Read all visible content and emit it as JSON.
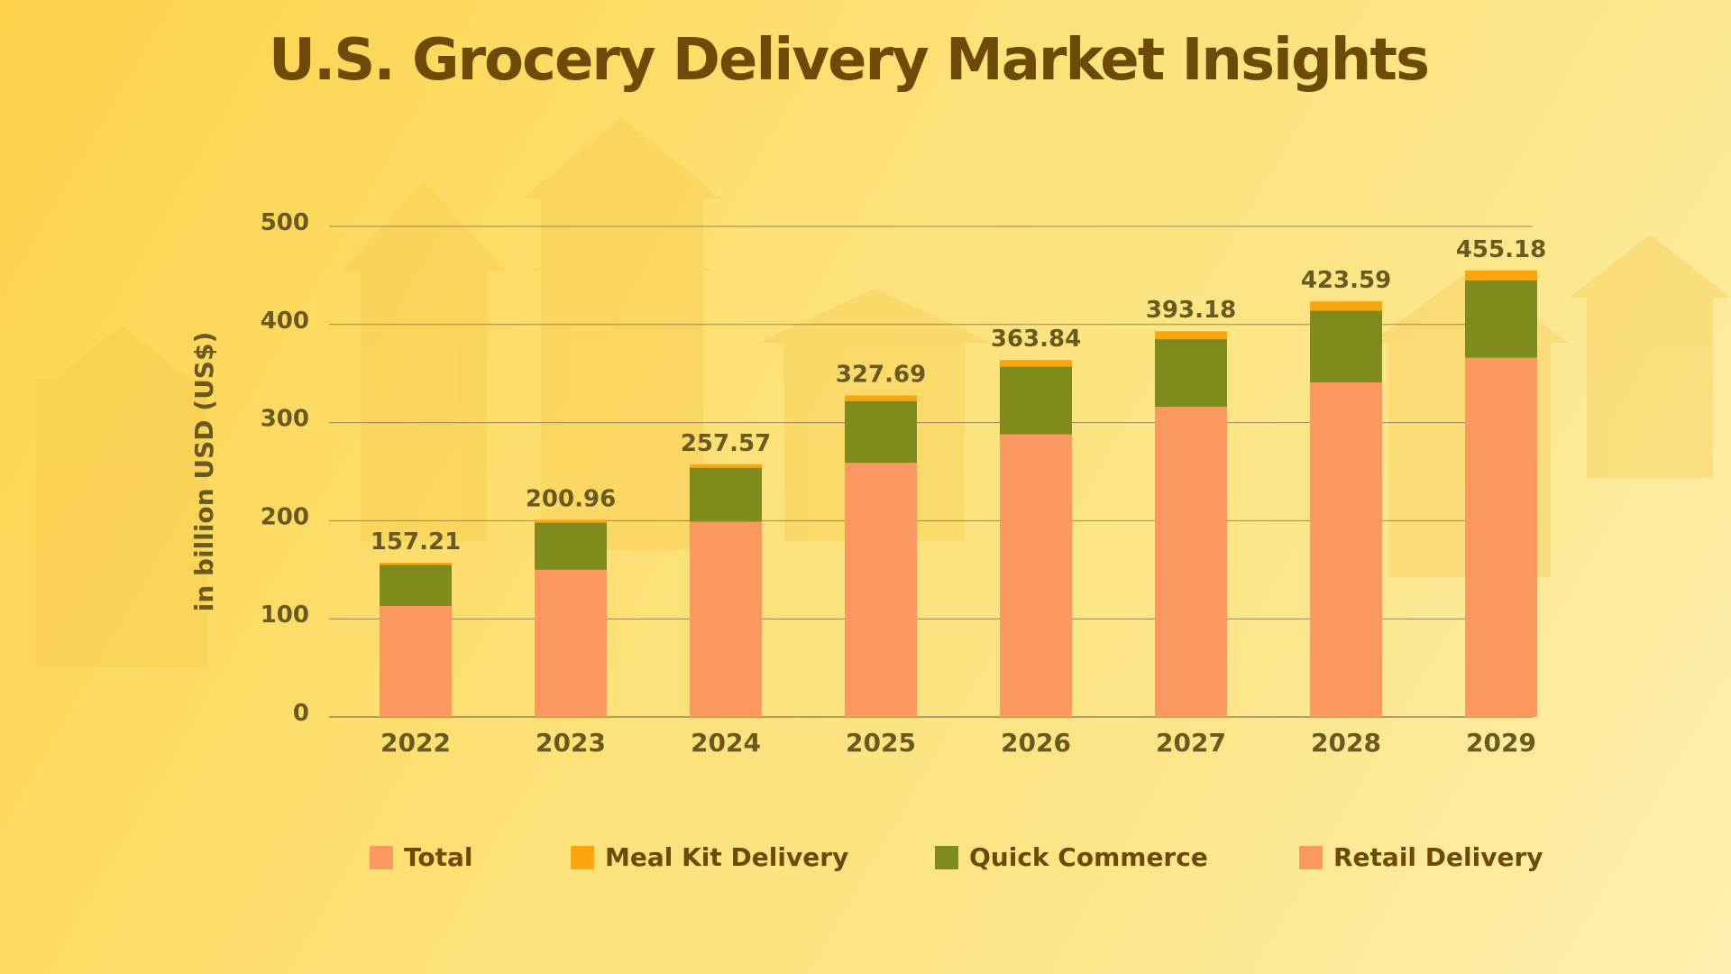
{
  "title": "U.S. Grocery Delivery Market Insights",
  "colors": {
    "total": "#fc9960",
    "meal_kit": "#fba60e",
    "quick_commerce": "#808b1e",
    "retail": "#fc9960",
    "text": "#6e4a08",
    "axis_text": "#6b5a1f",
    "grid": "#7a7060"
  },
  "legend": [
    {
      "key": "total",
      "label": "Total"
    },
    {
      "key": "meal_kit",
      "label": "Meal Kit Delivery"
    },
    {
      "key": "quick_commerce",
      "label": "Quick Commerce"
    },
    {
      "key": "retail",
      "label": "Retail Delivery"
    }
  ],
  "chart_data": {
    "type": "bar",
    "stacked": true,
    "title": "U.S. Grocery Delivery Market Insights",
    "xlabel": "",
    "ylabel": "in billion USD (US$)",
    "ylim": [
      0,
      500
    ],
    "yticks": [
      0,
      100,
      200,
      300,
      400,
      500
    ],
    "categories": [
      "2022",
      "2023",
      "2024",
      "2025",
      "2026",
      "2027",
      "2028",
      "2029"
    ],
    "series": [
      {
        "name": "Retail Delivery",
        "key": "retail",
        "values": [
          113,
          150,
          199,
          259,
          288,
          316,
          341,
          366
        ]
      },
      {
        "name": "Quick Commerce",
        "key": "quick_commerce",
        "values": [
          42,
          48,
          55,
          63,
          69,
          69,
          73,
          79
        ]
      },
      {
        "name": "Meal Kit Delivery",
        "key": "meal_kit",
        "values": [
          2.21,
          2.96,
          3.57,
          5.69,
          6.84,
          8.18,
          9.59,
          10.18
        ]
      }
    ],
    "totals": [
      157.21,
      200.96,
      257.57,
      327.69,
      363.84,
      393.18,
      423.59,
      455.18
    ],
    "total_labels": [
      "157.21",
      "200.96",
      "257.57",
      "327.69",
      "363.84",
      "393.18",
      "423.59",
      "455.18"
    ],
    "legend_position": "bottom"
  }
}
